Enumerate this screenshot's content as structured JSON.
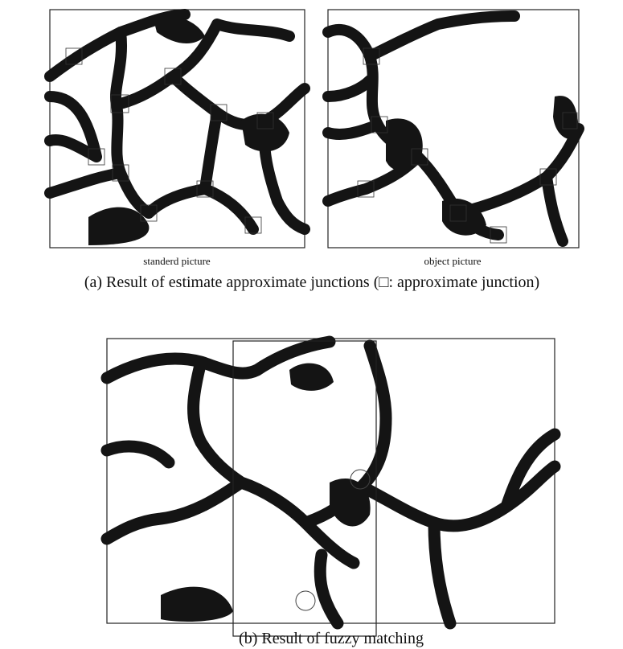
{
  "figure_a": {
    "left_label": "standerd picture",
    "right_label": "object picture",
    "caption": "(a) Result of estimate approximate junctions (□: approximate junction)"
  },
  "figure_b": {
    "caption": "(b) Result of fuzzy matching"
  }
}
